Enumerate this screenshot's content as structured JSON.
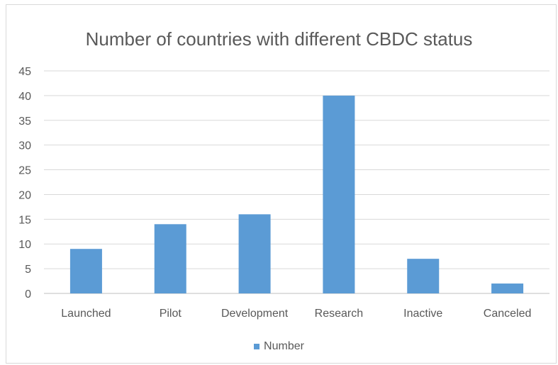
{
  "chart_data": {
    "type": "bar",
    "title": "Number of countries with different CBDC status",
    "xlabel": "",
    "ylabel": "",
    "categories": [
      "Launched",
      "Pilot",
      "Development",
      "Research",
      "Inactive",
      "Canceled"
    ],
    "series": [
      {
        "name": "Number",
        "values": [
          9,
          14,
          16,
          40,
          7,
          2
        ],
        "color": "#5b9bd5"
      }
    ],
    "ylim": [
      0,
      45
    ],
    "yticks": [
      "0",
      "5",
      "10",
      "15",
      "20",
      "25",
      "30",
      "35",
      "40",
      "45"
    ],
    "grid": true,
    "legend_position": "bottom"
  }
}
